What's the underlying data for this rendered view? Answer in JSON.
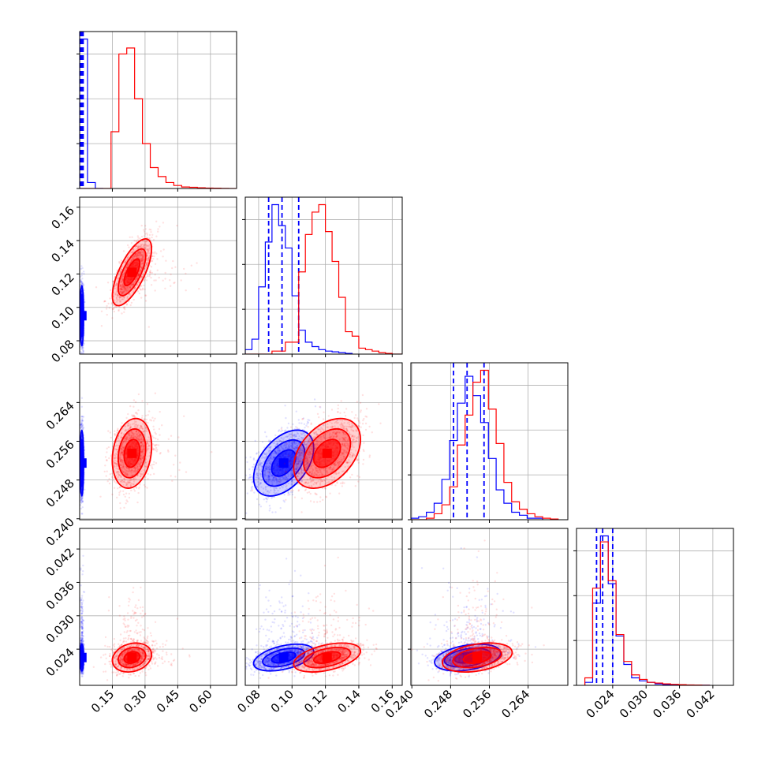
{
  "chart_data": {
    "type": "corner",
    "grid": true,
    "parameters": [
      {
        "range": [
          0.0,
          0.72
        ],
        "ticks": [
          0.15,
          0.3,
          0.45,
          0.6
        ],
        "tick_labels": [
          "0.15",
          "0.30",
          "0.45",
          "0.60"
        ]
      },
      {
        "range": [
          0.072,
          0.166
        ],
        "ticks": [
          0.08,
          0.1,
          0.12,
          0.14,
          0.16
        ],
        "tick_labels": [
          "0.08",
          "0.10",
          "0.12",
          "0.14",
          "0.16"
        ]
      },
      {
        "range": [
          0.2398,
          0.2722
        ],
        "ticks": [
          0.24,
          0.248,
          0.256,
          0.264
        ],
        "tick_labels": [
          "0.240",
          "0.248",
          "0.256",
          "0.264"
        ]
      },
      {
        "range": [
          0.0175,
          0.0457
        ],
        "ticks": [
          0.024,
          0.03,
          0.036,
          0.042
        ],
        "tick_labels": [
          "0.024",
          "0.030",
          "0.036",
          "0.042"
        ]
      }
    ],
    "series": [
      {
        "color": "#0000ff",
        "means": [
          0.01,
          0.095,
          0.2515,
          0.0225
        ],
        "sds": [
          0.004,
          0.009,
          0.0034,
          0.0012
        ],
        "correlations": {
          "0-1": 0.0,
          "0-2": 0.0,
          "0-3": 0.0,
          "1-2": 0.45,
          "1-3": 0.45,
          "2-3": 0.35
        },
        "quantiles": [
          [
            0.004,
            0.01,
            0.016
          ],
          [
            0.086,
            0.094,
            0.104
          ],
          [
            0.2486,
            0.2514,
            0.2549
          ],
          [
            0.0211,
            0.0222,
            0.024
          ]
        ],
        "histograms": [
          {
            "bins": [
              0.0,
              0.036,
              0.072,
              0.108
            ],
            "counts": [
              1.0,
              0.04,
              0.0
            ]
          },
          {
            "bins": [
              0.072,
              0.076,
              0.08,
              0.084,
              0.088,
              0.092,
              0.096,
              0.1,
              0.104,
              0.108,
              0.112,
              0.116,
              0.12,
              0.124,
              0.128,
              0.132,
              0.136
            ],
            "counts": [
              0.03,
              0.1,
              0.45,
              0.75,
              1.0,
              0.86,
              0.71,
              0.39,
              0.16,
              0.08,
              0.05,
              0.03,
              0.02,
              0.015,
              0.01,
              0.005
            ]
          },
          {
            "bins": [
              0.2398,
              0.2414,
              0.243,
              0.2446,
              0.2462,
              0.2478,
              0.2494,
              0.251,
              0.2526,
              0.2542,
              0.2558,
              0.2574,
              0.259,
              0.2606,
              0.2622,
              0.2638,
              0.2654,
              0.267
            ],
            "counts": [
              0.01,
              0.02,
              0.05,
              0.11,
              0.27,
              0.53,
              0.78,
              0.96,
              0.83,
              0.65,
              0.41,
              0.2,
              0.11,
              0.05,
              0.03,
              0.01,
              0.01
            ]
          },
          {
            "bins": [
              0.019,
              0.0204,
              0.0218,
              0.0232,
              0.0246,
              0.026,
              0.0274,
              0.0288,
              0.0302,
              0.0316,
              0.033,
              0.0344,
              0.0358,
              0.0372,
              0.0386,
              0.04,
              0.0414
            ],
            "counts": [
              0.02,
              0.55,
              1.0,
              0.68,
              0.33,
              0.14,
              0.05,
              0.03,
              0.02,
              0.01,
              0.006,
              0.004,
              0.003,
              0.002,
              0.002,
              0.001
            ]
          }
        ]
      },
      {
        "color": "#ff0000",
        "means": [
          0.24,
          0.121,
          0.2535,
          0.0225
        ],
        "sds": [
          0.045,
          0.01,
          0.0036,
          0.0013
        ],
        "correlations": {
          "0-1": 0.7,
          "0-2": 0.2,
          "0-3": 0.2,
          "1-2": 0.4,
          "1-3": 0.45,
          "2-3": 0.35
        },
        "quantiles": [],
        "histograms": [
          {
            "bins": [
              0.0,
              0.036,
              0.072,
              0.108,
              0.144,
              0.18,
              0.216,
              0.252,
              0.288,
              0.324,
              0.36,
              0.396,
              0.432,
              0.468,
              0.504,
              0.54,
              0.576,
              0.612,
              0.648,
              0.684,
              0.72
            ],
            "counts": [
              0.0,
              0.0,
              0.0,
              0.0,
              0.38,
              0.9,
              0.94,
              0.6,
              0.3,
              0.14,
              0.08,
              0.04,
              0.02,
              0.01,
              0.008,
              0.005,
              0.003,
              0.002,
              0.001,
              0.0
            ]
          },
          {
            "bins": [
              0.072,
              0.08,
              0.088,
              0.096,
              0.104,
              0.108,
              0.112,
              0.116,
              0.12,
              0.124,
              0.128,
              0.132,
              0.136,
              0.14,
              0.144,
              0.148,
              0.152,
              0.156,
              0.16,
              0.166
            ],
            "counts": [
              0.0,
              0.0,
              0.02,
              0.08,
              0.55,
              0.8,
              0.95,
              1.0,
              0.82,
              0.62,
              0.38,
              0.15,
              0.12,
              0.04,
              0.03,
              0.02,
              0.01,
              0.005,
              0.0
            ]
          },
          {
            "bins": [
              0.2398,
              0.2414,
              0.243,
              0.2446,
              0.2462,
              0.2478,
              0.2494,
              0.251,
              0.2526,
              0.2542,
              0.2558,
              0.2574,
              0.259,
              0.2606,
              0.2622,
              0.2638,
              0.2654,
              0.267,
              0.2686,
              0.2702
            ],
            "counts": [
              0.0,
              0.0,
              0.01,
              0.04,
              0.1,
              0.22,
              0.5,
              0.7,
              0.92,
              1.0,
              0.74,
              0.51,
              0.25,
              0.12,
              0.07,
              0.04,
              0.02,
              0.01,
              0.005
            ]
          },
          {
            "bins": [
              0.019,
              0.0204,
              0.0218,
              0.0232,
              0.0246,
              0.026,
              0.0274,
              0.0288,
              0.0302,
              0.0316,
              0.033,
              0.0344,
              0.0358,
              0.0372,
              0.0386,
              0.04,
              0.0414
            ],
            "counts": [
              0.05,
              0.65,
              0.96,
              0.7,
              0.34,
              0.16,
              0.07,
              0.04,
              0.02,
              0.015,
              0.01,
              0.007,
              0.005,
              0.003,
              0.002,
              0.001
            ]
          }
        ]
      }
    ]
  }
}
